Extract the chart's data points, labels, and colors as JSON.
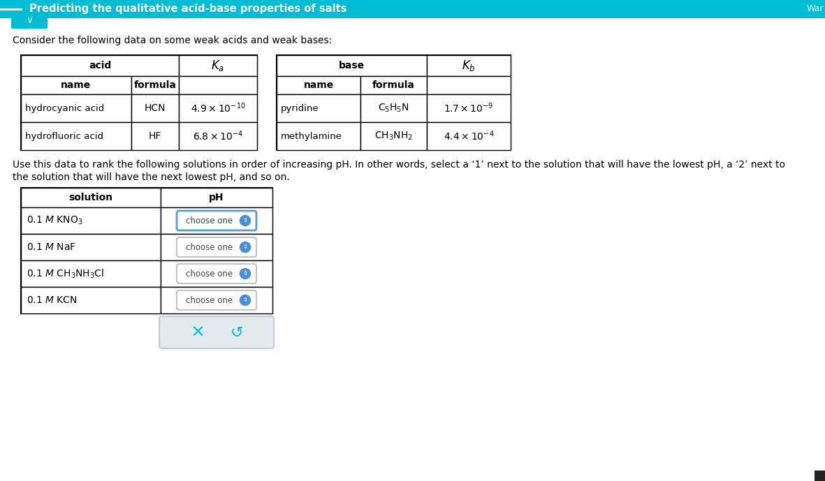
{
  "title": "Predicting the qualitative acid-base properties of salts",
  "title_bg": "#00BCD4",
  "title_color": "#ffffff",
  "page_bg": "#ffffff",
  "intro_text": "Consider the following data on some weak acids and weak bases:",
  "para1": "Use this data to rank the following solutions in order of increasing pH. In other words, select a ‘1’ next to the solution that will have the lowest pH, a ‘2’ next to",
  "para2": "the solution that will have the next lowest pH, and so on.",
  "acid_rows": [
    {
      "name": "hydrocyanic acid",
      "formula": "HCN",
      "Ka": "$4.9 \\times 10^{-10}$"
    },
    {
      "name": "hydrofluoric acid",
      "formula": "HF",
      "Ka": "$6.8 \\times 10^{-4}$"
    }
  ],
  "base_rows": [
    {
      "name": "pyridine",
      "formula": "$\\mathrm{C_5H_5N}$",
      "Kb": "$1.7 \\times 10^{-9}$"
    },
    {
      "name": "methylamine",
      "formula": "$\\mathrm{CH_3NH_2}$",
      "Kb": "$4.4 \\times 10^{-4}$"
    }
  ],
  "solutions": [
    "0.1 $M$ KNO$_3$",
    "0.1 $M$ NaF",
    "0.1 $M$ CH$_3$NH$_3$Cl",
    "0.1 $M$ KCN"
  ],
  "choose_one_blue": "#4A90D9",
  "choose_one_border_selected": "#5B9BD5",
  "choose_one_border_normal": "#AAAAAA",
  "button_bar_bg": "#E2EAF0",
  "button_bar_border": "#C0CDD8",
  "teal": "#00BCD4"
}
